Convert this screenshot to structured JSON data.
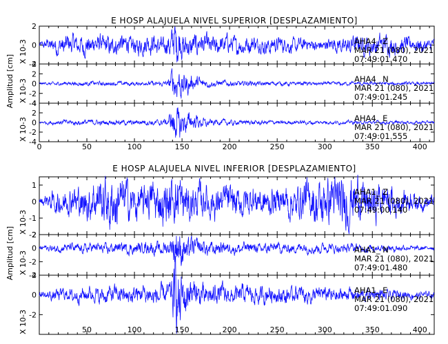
{
  "chart_data": [
    {
      "type": "line",
      "title": "E HOSP ALAJUELA NIVEL SUPERIOR [DESPLAZAMIENTO]",
      "ylabel": "Amplitud [cm]",
      "xlim": [
        0,
        415
      ],
      "x_ticks": [
        0,
        50,
        100,
        150,
        200,
        250,
        300,
        350,
        400
      ],
      "color": "#1010ff",
      "grid": false,
      "channels": [
        {
          "scale_label": "X 10-3",
          "ylim": [
            -2,
            2
          ],
          "y_ticks": [
            -2,
            0,
            2
          ],
          "annotation": [
            "AHA4_ Z",
            "MAR 21 (080), 2021",
            "07:49:01.470"
          ],
          "envelope": {
            "x": [
              0,
              20,
              50,
              100,
              135,
              142,
              145,
              155,
              175,
              250,
              300,
              330,
              360,
              415
            ],
            "amp": [
              0.25,
              1.0,
              1.0,
              1.0,
              1.0,
              2.3,
              2.0,
              1.3,
              1.0,
              0.8,
              0.6,
              1.0,
              1.0,
              0.6
            ]
          }
        },
        {
          "scale_label": "X 10-3",
          "ylim": [
            -4,
            4
          ],
          "y_ticks": [
            -4,
            -2,
            0,
            2,
            4
          ],
          "annotation": [
            "AHA4_ N",
            "MAR 21 (080), 2021",
            "07:49:01.245"
          ],
          "envelope": {
            "x": [
              0,
              20,
              100,
              135,
              142,
              148,
              160,
              180,
              250,
              415
            ],
            "amp": [
              0.2,
              0.4,
              0.4,
              0.5,
              3.6,
              2.8,
              1.5,
              0.6,
              0.4,
              0.3
            ]
          }
        },
        {
          "scale_label": "X 10-3",
          "ylim": [
            -4,
            4
          ],
          "y_ticks": [
            -4,
            -2,
            0,
            2,
            4
          ],
          "annotation": [
            "AHA4_ E",
            "MAR 21 (080), 2021",
            "07:49:01.555"
          ],
          "envelope": {
            "x": [
              0,
              20,
              100,
              135,
              142,
              148,
              160,
              180,
              250,
              415
            ],
            "amp": [
              0.2,
              0.5,
              0.5,
              0.6,
              3.8,
              2.8,
              1.6,
              0.6,
              0.4,
              0.3
            ]
          }
        }
      ]
    },
    {
      "type": "line",
      "title": "E HOSP ALAJUELA NIVEL INFERIOR [DESPLAZAMIENTO]",
      "ylabel": "Amplitud [cm]",
      "xlim": [
        0,
        415
      ],
      "x_ticks": [
        50,
        100,
        150,
        200,
        250,
        300,
        350,
        400
      ],
      "color": "#1010ff",
      "grid": false,
      "channels": [
        {
          "scale_label": "X 10-3",
          "ylim": [
            -2,
            1.5
          ],
          "y_ticks": [
            -2,
            -1,
            0,
            1
          ],
          "annotation": [
            "AHA1_ Z",
            "MAR 21 (080), 2021",
            "07:49:00.140"
          ],
          "envelope": {
            "x": [
              0,
              20,
              60,
              80,
              100,
              140,
              145,
              160,
              250,
              300,
              320,
              360,
              415
            ],
            "amp": [
              0.2,
              0.7,
              1.2,
              1.6,
              0.9,
              1.4,
              1.6,
              1.0,
              0.8,
              1.4,
              1.6,
              1.0,
              0.3
            ]
          }
        },
        {
          "scale_label": "X 10-3",
          "ylim": [
            -4,
            2
          ],
          "y_ticks": [
            -4,
            -2,
            0,
            2
          ],
          "annotation": [
            "AHA1_ N",
            "MAR 21 (080), 2021",
            "07:49:01.480"
          ],
          "envelope": {
            "x": [
              0,
              20,
              100,
              138,
              143,
              150,
              165,
              200,
              300,
              415
            ],
            "amp": [
              0.3,
              0.6,
              0.8,
              1.0,
              3.4,
              2.2,
              1.2,
              0.8,
              0.7,
              0.3
            ]
          }
        },
        {
          "scale_label": "X 10-3",
          "ylim": [
            -4,
            2
          ],
          "y_ticks": [
            -2,
            0,
            2
          ],
          "annotation": [
            "AHA1_ E",
            "MAR 21 (080), 2021",
            "07:49:01.090"
          ],
          "envelope": {
            "x": [
              0,
              20,
              100,
              138,
              143,
              150,
              165,
              200,
              300,
              415
            ],
            "amp": [
              0.3,
              0.6,
              0.9,
              1.0,
              4.0,
              2.2,
              1.2,
              0.9,
              0.8,
              0.3
            ]
          }
        }
      ]
    }
  ]
}
